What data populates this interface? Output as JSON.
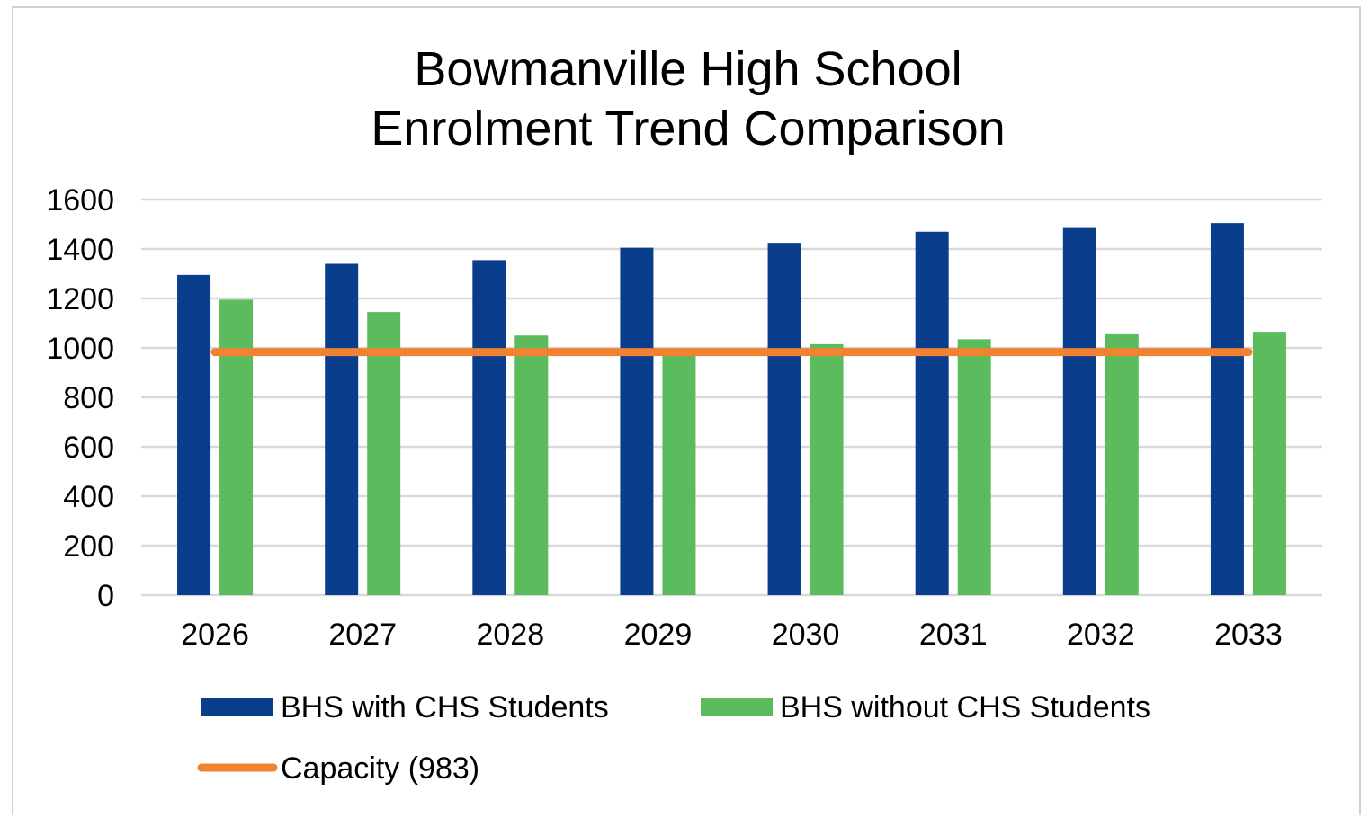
{
  "chart_data": {
    "type": "bar",
    "title": [
      "Bowmanville High School",
      "Enrolment Trend Comparison"
    ],
    "categories": [
      "2026",
      "2027",
      "2028",
      "2029",
      "2030",
      "2031",
      "2032",
      "2033"
    ],
    "ylim": [
      0,
      1600
    ],
    "yticks": [
      "0",
      "200",
      "400",
      "600",
      "800",
      "1000",
      "1200",
      "1400",
      "1600"
    ],
    "grid": true,
    "legend_position": "bottom",
    "series": [
      {
        "name": "BHS with CHS Students",
        "type": "bar",
        "color": "#0a3d8c",
        "values": [
          1295,
          1340,
          1355,
          1405,
          1425,
          1470,
          1485,
          1505
        ]
      },
      {
        "name": "BHS without CHS Students",
        "type": "bar",
        "color": "#5cbb5c",
        "values": [
          1195,
          1145,
          1050,
          985,
          1015,
          1035,
          1055,
          1065
        ]
      },
      {
        "name": "Capacity (983)",
        "type": "line",
        "color": "#f08232",
        "values": [
          983,
          983,
          983,
          983,
          983,
          983,
          983,
          983
        ]
      }
    ]
  }
}
